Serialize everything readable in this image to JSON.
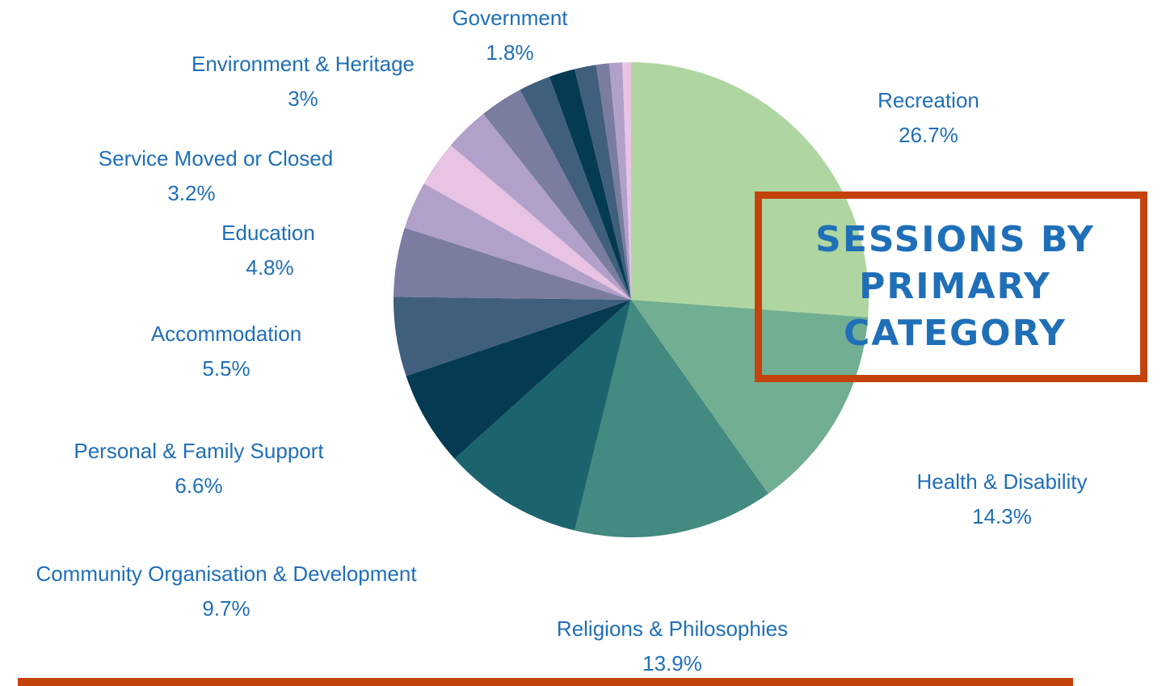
{
  "title": "Sessions by primary category",
  "chart_data": {
    "type": "pie",
    "title": "Sessions by primary category",
    "start_angle": "12 o'clock, clockwise",
    "slices": [
      {
        "label": "Recreation",
        "value": 26.7,
        "value_label": "26.7%",
        "color": "#afd6a1",
        "show_label": true
      },
      {
        "label": "Health & Disability",
        "value": 14.3,
        "value_label": "14.3%",
        "color": "#72ae91",
        "show_label": true
      },
      {
        "label": "Religions & Philosophies",
        "value": 13.9,
        "value_label": "13.9%",
        "color": "#438a80",
        "show_label": true
      },
      {
        "label": "Community Organisation & Development",
        "value": 9.7,
        "value_label": "9.7%",
        "color": "#1c646d",
        "show_label": true
      },
      {
        "label": "Personal & Family Support",
        "value": 6.6,
        "value_label": "6.6%",
        "color": "#043a52",
        "show_label": true
      },
      {
        "label": "Accommodation",
        "value": 5.5,
        "value_label": "5.5%",
        "color": "#405f7c",
        "show_label": true
      },
      {
        "label": "Education",
        "value": 4.8,
        "value_label": "4.8%",
        "color": "#7a7ca0",
        "show_label": true
      },
      {
        "label": "",
        "value": 3.3,
        "value_label": "",
        "color": "#b1a0c9",
        "show_label": false
      },
      {
        "label": "Service Moved or Closed",
        "value": 3.2,
        "value_label": "3.2%",
        "color": "#e8c3e4",
        "show_label": true
      },
      {
        "label": "",
        "value": 3.1,
        "value_label": "",
        "color": "#b1a0c9",
        "show_label": false
      },
      {
        "label": "Environment & Heritage",
        "value": 3,
        "value_label": "3%",
        "color": "#7a7ca0",
        "show_label": true
      },
      {
        "label": "",
        "value": 2.2,
        "value_label": "",
        "color": "#405f7c",
        "show_label": false
      },
      {
        "label": "Government",
        "value": 1.8,
        "value_label": "1.8%",
        "color": "#043a52",
        "show_label": true
      },
      {
        "label": "",
        "value": 1.5,
        "value_label": "",
        "color": "#405f7c",
        "show_label": false
      },
      {
        "label": "",
        "value": 0.9,
        "value_label": "",
        "color": "#7a7ca0",
        "show_label": false
      },
      {
        "label": "",
        "value": 0.9,
        "value_label": "",
        "color": "#b1a0c9",
        "show_label": false
      },
      {
        "label": "",
        "value": 0.6,
        "value_label": "",
        "color": "#e8c3e4",
        "show_label": false
      }
    ]
  },
  "colors": {
    "label_text": "#1f6fb8",
    "accent": "#c4420b",
    "title_text": "#1f6fb8"
  }
}
